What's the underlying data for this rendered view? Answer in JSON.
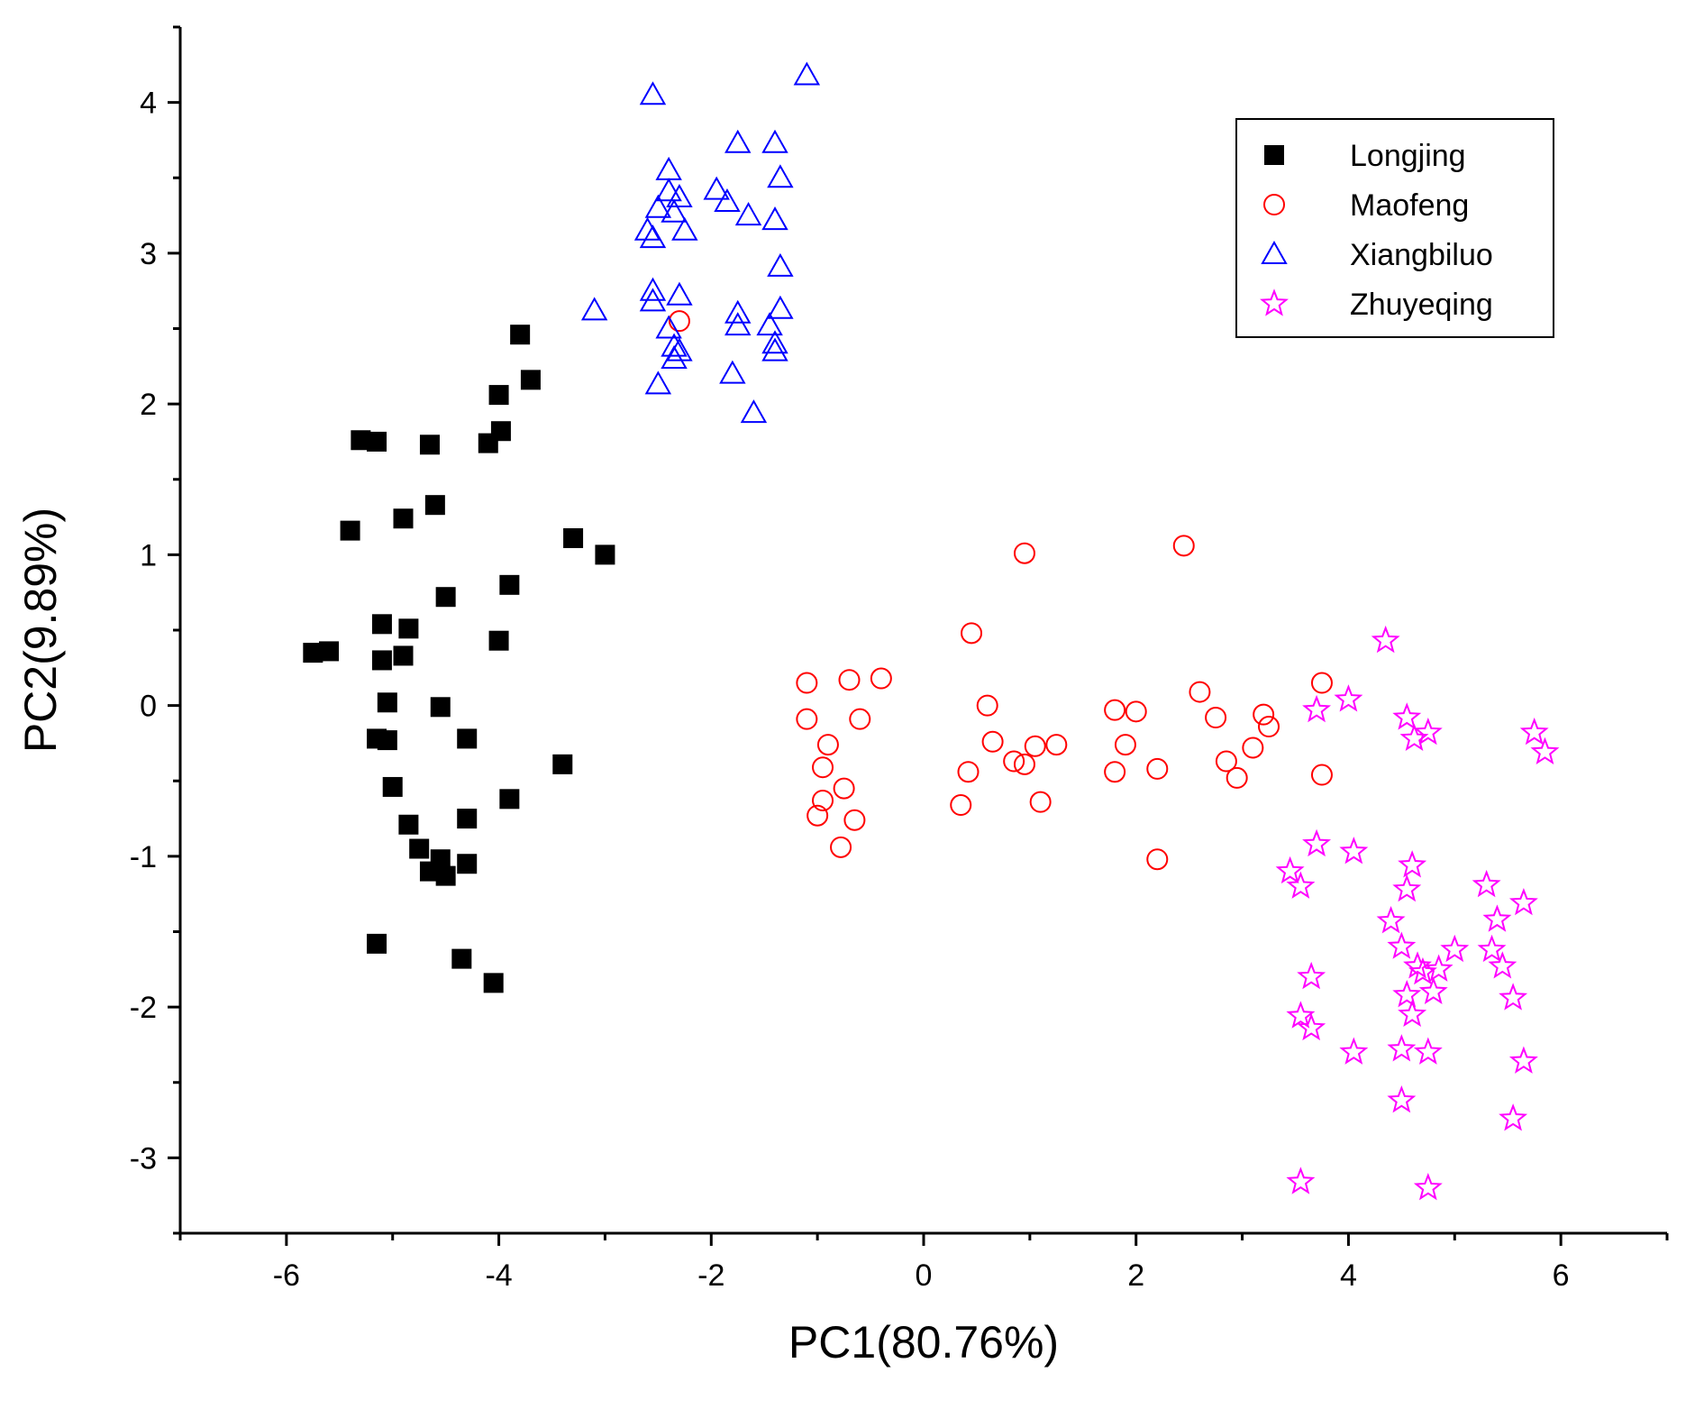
{
  "chart_data": {
    "type": "scatter",
    "title": "",
    "xlabel": "PC1(80.76%)",
    "ylabel": "PC2(9.89%)",
    "xlim": [
      -7,
      7
    ],
    "ylim": [
      -3.5,
      4.5
    ],
    "xticks": [
      -6,
      -4,
      -2,
      0,
      2,
      4,
      6
    ],
    "yticks": [
      -3,
      -2,
      -1,
      0,
      1,
      2,
      3,
      4
    ],
    "xtick_labels": [
      "-6",
      "-4",
      "-2",
      "0",
      "2",
      "4",
      "6"
    ],
    "ytick_labels": [
      "-3",
      "-2",
      "-1",
      "0",
      "1",
      "2",
      "3",
      "4"
    ],
    "grid": false,
    "legend_position": "top-right",
    "series": [
      {
        "name": "Longjing",
        "marker": "square-filled",
        "color": "#000000",
        "points": [
          [
            -3.8,
            2.46
          ],
          [
            -3.7,
            2.16
          ],
          [
            -4.0,
            2.06
          ],
          [
            -3.98,
            1.82
          ],
          [
            -4.1,
            1.74
          ],
          [
            -5.3,
            1.76
          ],
          [
            -5.15,
            1.75
          ],
          [
            -4.65,
            1.73
          ],
          [
            -4.6,
            1.33
          ],
          [
            -4.9,
            1.24
          ],
          [
            -5.4,
            1.16
          ],
          [
            -3.3,
            1.11
          ],
          [
            -3.0,
            1.0
          ],
          [
            -3.9,
            0.8
          ],
          [
            -4.5,
            0.72
          ],
          [
            -5.1,
            0.54
          ],
          [
            -4.85,
            0.51
          ],
          [
            -4.0,
            0.43
          ],
          [
            -5.75,
            0.35
          ],
          [
            -5.6,
            0.36
          ],
          [
            -5.1,
            0.3
          ],
          [
            -4.9,
            0.33
          ],
          [
            -5.05,
            0.02
          ],
          [
            -4.55,
            -0.01
          ],
          [
            -5.15,
            -0.22
          ],
          [
            -5.05,
            -0.23
          ],
          [
            -4.3,
            -0.22
          ],
          [
            -3.4,
            -0.39
          ],
          [
            -5.0,
            -0.54
          ],
          [
            -3.9,
            -0.62
          ],
          [
            -4.85,
            -0.79
          ],
          [
            -4.3,
            -0.75
          ],
          [
            -4.75,
            -0.95
          ],
          [
            -4.55,
            -1.02
          ],
          [
            -4.65,
            -1.1
          ],
          [
            -4.5,
            -1.13
          ],
          [
            -4.3,
            -1.05
          ],
          [
            -5.15,
            -1.58
          ],
          [
            -4.35,
            -1.68
          ],
          [
            -4.05,
            -1.84
          ]
        ]
      },
      {
        "name": "Maofeng",
        "marker": "circle-open",
        "color": "#ff0000",
        "points": [
          [
            -1.1,
            0.15
          ],
          [
            -0.7,
            0.17
          ],
          [
            -0.4,
            0.18
          ],
          [
            -1.1,
            -0.09
          ],
          [
            -0.6,
            -0.09
          ],
          [
            -0.9,
            -0.26
          ],
          [
            -0.95,
            -0.41
          ],
          [
            -0.75,
            -0.55
          ],
          [
            -0.95,
            -0.63
          ],
          [
            -1.0,
            -0.73
          ],
          [
            -0.65,
            -0.76
          ],
          [
            -0.78,
            -0.94
          ],
          [
            0.45,
            0.48
          ],
          [
            0.6,
            0.0
          ],
          [
            0.65,
            -0.24
          ],
          [
            0.42,
            -0.44
          ],
          [
            0.85,
            -0.37
          ],
          [
            0.95,
            -0.39
          ],
          [
            1.05,
            -0.27
          ],
          [
            1.25,
            -0.26
          ],
          [
            0.35,
            -0.66
          ],
          [
            1.1,
            -0.64
          ],
          [
            0.95,
            1.01
          ],
          [
            2.45,
            1.06
          ],
          [
            1.8,
            -0.03
          ],
          [
            2.0,
            -0.04
          ],
          [
            1.9,
            -0.26
          ],
          [
            1.8,
            -0.44
          ],
          [
            2.2,
            -0.42
          ],
          [
            2.6,
            0.09
          ],
          [
            2.75,
            -0.08
          ],
          [
            2.85,
            -0.37
          ],
          [
            2.95,
            -0.48
          ],
          [
            3.2,
            -0.06
          ],
          [
            3.1,
            -0.28
          ],
          [
            3.25,
            -0.14
          ],
          [
            3.75,
            0.15
          ],
          [
            3.75,
            -0.46
          ],
          [
            2.2,
            -1.02
          ],
          [
            -2.3,
            2.55
          ]
        ]
      },
      {
        "name": "Xiangbiluo",
        "marker": "triangle-open",
        "color": "#0000ff",
        "points": [
          [
            -1.1,
            4.18
          ],
          [
            -2.55,
            4.05
          ],
          [
            -1.75,
            3.73
          ],
          [
            -1.4,
            3.73
          ],
          [
            -2.4,
            3.55
          ],
          [
            -1.35,
            3.5
          ],
          [
            -2.4,
            3.41
          ],
          [
            -1.95,
            3.42
          ],
          [
            -2.3,
            3.37
          ],
          [
            -1.85,
            3.34
          ],
          [
            -2.5,
            3.3
          ],
          [
            -2.35,
            3.27
          ],
          [
            -1.65,
            3.25
          ],
          [
            -1.4,
            3.22
          ],
          [
            -2.6,
            3.15
          ],
          [
            -2.55,
            3.1
          ],
          [
            -2.25,
            3.15
          ],
          [
            -1.35,
            2.91
          ],
          [
            -2.55,
            2.75
          ],
          [
            -2.3,
            2.72
          ],
          [
            -2.55,
            2.68
          ],
          [
            -3.1,
            2.62
          ],
          [
            -1.75,
            2.6
          ],
          [
            -1.35,
            2.63
          ],
          [
            -1.75,
            2.52
          ],
          [
            -1.45,
            2.52
          ],
          [
            -2.4,
            2.5
          ],
          [
            -2.35,
            2.38
          ],
          [
            -1.4,
            2.4
          ],
          [
            -2.3,
            2.35
          ],
          [
            -1.4,
            2.35
          ],
          [
            -2.35,
            2.3
          ],
          [
            -1.8,
            2.2
          ],
          [
            -2.5,
            2.13
          ],
          [
            -1.6,
            1.94
          ]
        ]
      },
      {
        "name": "Zhuyeqing",
        "marker": "star-open",
        "color": "#ff00ff",
        "points": [
          [
            4.35,
            0.43
          ],
          [
            4.0,
            0.04
          ],
          [
            3.7,
            -0.03
          ],
          [
            4.55,
            -0.08
          ],
          [
            4.75,
            -0.18
          ],
          [
            4.62,
            -0.22
          ],
          [
            5.75,
            -0.18
          ],
          [
            5.85,
            -0.31
          ],
          [
            3.7,
            -0.92
          ],
          [
            4.05,
            -0.97
          ],
          [
            3.45,
            -1.1
          ],
          [
            3.55,
            -1.2
          ],
          [
            4.6,
            -1.06
          ],
          [
            4.55,
            -1.22
          ],
          [
            5.3,
            -1.19
          ],
          [
            5.65,
            -1.31
          ],
          [
            5.4,
            -1.42
          ],
          [
            4.4,
            -1.43
          ],
          [
            4.5,
            -1.6
          ],
          [
            5.0,
            -1.62
          ],
          [
            5.35,
            -1.62
          ],
          [
            5.45,
            -1.73
          ],
          [
            4.65,
            -1.73
          ],
          [
            4.7,
            -1.77
          ],
          [
            4.85,
            -1.75
          ],
          [
            3.65,
            -1.8
          ],
          [
            4.55,
            -1.92
          ],
          [
            4.8,
            -1.9
          ],
          [
            5.55,
            -1.94
          ],
          [
            4.6,
            -2.05
          ],
          [
            3.55,
            -2.06
          ],
          [
            3.65,
            -2.14
          ],
          [
            4.05,
            -2.3
          ],
          [
            4.5,
            -2.28
          ],
          [
            4.75,
            -2.3
          ],
          [
            5.65,
            -2.36
          ],
          [
            4.5,
            -2.62
          ],
          [
            5.55,
            -2.74
          ],
          [
            3.55,
            -3.16
          ],
          [
            4.75,
            -3.2
          ]
        ]
      }
    ]
  }
}
